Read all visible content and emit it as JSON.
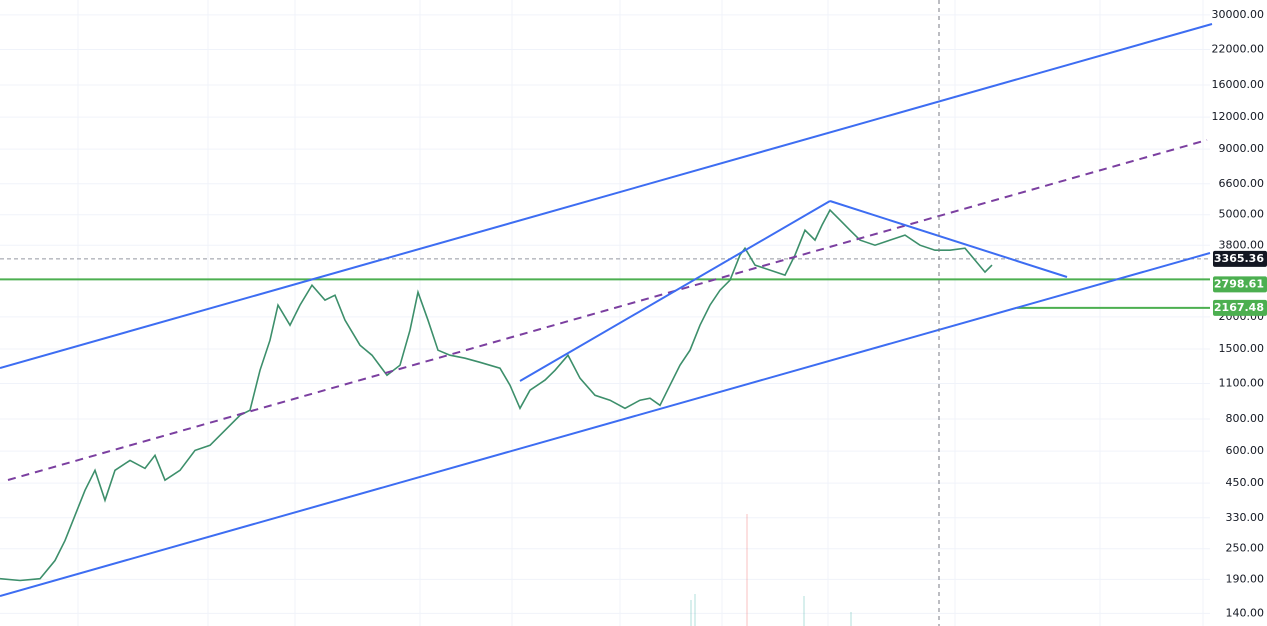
{
  "chart_data": {
    "type": "line",
    "log_scale": true,
    "grid": true,
    "color": "#3d8f6b",
    "ylim": [
      125,
      34300
    ],
    "xlim": [
      0,
      1210
    ],
    "yticks": [
      {
        "value": 30000,
        "label": "30000.00"
      },
      {
        "value": 22000,
        "label": "22000.00"
      },
      {
        "value": 16000,
        "label": "16000.00"
      },
      {
        "value": 12000,
        "label": "12000.00"
      },
      {
        "value": 9000,
        "label": "9000.00"
      },
      {
        "value": 6600,
        "label": "6600.00"
      },
      {
        "value": 5000,
        "label": "5000.00"
      },
      {
        "value": 3800,
        "label": "3800.00"
      },
      {
        "value": 2000,
        "label": "2000.00"
      },
      {
        "value": 1500,
        "label": "1500.00"
      },
      {
        "value": 1100,
        "label": "1100.00"
      },
      {
        "value": 800,
        "label": "800.00"
      },
      {
        "value": 600,
        "label": "600.00"
      },
      {
        "value": 450,
        "label": "450.00"
      },
      {
        "value": 330,
        "label": "330.00"
      },
      {
        "value": 250,
        "label": "250.00"
      },
      {
        "value": 190,
        "label": "190.00"
      },
      {
        "value": 140,
        "label": "140.00"
      }
    ],
    "x": [
      0,
      20,
      40,
      55,
      65,
      75,
      85,
      95,
      105,
      115,
      130,
      145,
      155,
      165,
      180,
      195,
      210,
      225,
      240,
      250,
      260,
      270,
      278,
      290,
      300,
      312,
      325,
      335,
      345,
      360,
      372,
      387,
      400,
      410,
      418,
      428,
      438,
      450,
      465,
      480,
      500,
      510,
      520,
      530,
      545,
      555,
      568,
      580,
      595,
      610,
      625,
      640,
      650,
      660,
      670,
      680,
      690,
      700,
      710,
      720,
      730,
      740,
      745,
      755,
      770,
      785,
      795,
      805,
      815,
      822,
      830,
      840,
      850,
      860,
      875,
      890,
      905,
      920,
      935,
      950,
      965,
      975,
      985,
      992
    ],
    "values": [
      191,
      188,
      191,
      225,
      269,
      337,
      422,
      505,
      386,
      505,
      552,
      514,
      578,
      462,
      505,
      604,
      632,
      723,
      827,
      866,
      1238,
      1622,
      2222,
      1856,
      2222,
      2658,
      2324,
      2430,
      1941,
      1551,
      1418,
      1184,
      1296,
      1775,
      2495,
      1941,
      1483,
      1418,
      1381,
      1331,
      1262,
      1084,
      881,
      1036,
      1134,
      1238,
      1418,
      1154,
      990,
      947,
      881,
      947,
      964,
      905,
      1084,
      1296,
      1483,
      1856,
      2222,
      2540,
      2780,
      3481,
      3703,
      3181,
      3041,
      2908,
      3481,
      4353,
      3980,
      4553,
      5213,
      4764,
      4353,
      3980,
      3805,
      3980,
      4164,
      3805,
      3636,
      3636,
      3703,
      3327,
      2988,
      3181
    ],
    "current_price": {
      "value": 3365.36,
      "label": "3365.36",
      "color": "#131722"
    },
    "levels": [
      {
        "value": 2798.61,
        "label": "2798.61",
        "color": "#4caf50"
      },
      {
        "value": 2167.48,
        "label": "2167.48",
        "color": "#4caf50"
      }
    ]
  }
}
